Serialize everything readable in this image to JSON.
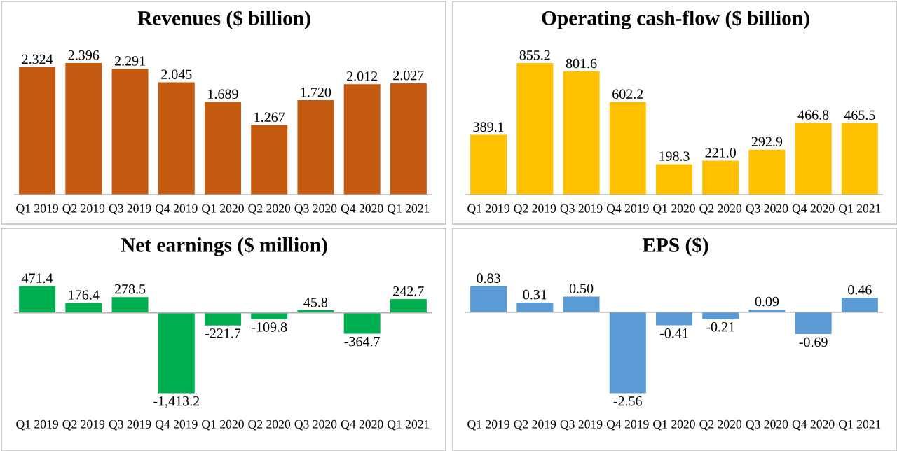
{
  "chart_data": [
    {
      "type": "bar",
      "title": "Revenues ($ billion)",
      "categories": [
        "Q1 2019",
        "Q2 2019",
        "Q3 2019",
        "Q4 2019",
        "Q1 2020",
        "Q2 2020",
        "Q3 2020",
        "Q4 2020",
        "Q1 2021"
      ],
      "values": [
        2.324,
        2.396,
        2.291,
        2.045,
        1.689,
        1.267,
        1.72,
        2.012,
        2.027
      ],
      "value_labels": [
        "2.324",
        "2.396",
        "2.291",
        "2.045",
        "1.689",
        "1.267",
        "1.720",
        "2.012",
        "2.027"
      ],
      "color": "#c55a11",
      "tick_labels": "x"
    },
    {
      "type": "bar",
      "title": "Operating cash-flow ($ billion)",
      "categories": [
        "Q1 2019",
        "Q2 2019",
        "Q3 2019",
        "Q4 2019",
        "Q1 2020",
        "Q2 2020",
        "Q3 2020",
        "Q4 2020",
        "Q1 2021"
      ],
      "values": [
        389.1,
        855.2,
        801.6,
        602.2,
        198.3,
        221.0,
        292.9,
        466.8,
        465.5
      ],
      "value_labels": [
        "389.1",
        "855.2",
        "801.6",
        "602.2",
        "198.3",
        "221.0",
        "292.9",
        "466.8",
        "465.5"
      ],
      "color": "#ffc000",
      "tick_labels": "x"
    },
    {
      "type": "bar",
      "title": "Net earnings ($ million)",
      "categories": [
        "Q1 2019",
        "Q2 2019",
        "Q3 2019",
        "Q4 2019",
        "Q1 2020",
        "Q2 2020",
        "Q3 2020",
        "Q4 2020",
        "Q1 2021"
      ],
      "values": [
        471.4,
        176.4,
        278.5,
        -1413.2,
        -221.7,
        -109.8,
        45.8,
        -364.7,
        242.7
      ],
      "value_labels": [
        "471.4",
        "176.4",
        "278.5",
        "-1,413.2",
        "-221.7",
        "-109.8",
        "45.8",
        "-364.7",
        "242.7"
      ],
      "color": "#00b050",
      "tick_labels": "x"
    },
    {
      "type": "bar",
      "title": "EPS ($)",
      "categories": [
        "Q1 2019",
        "Q2 2019",
        "Q3 2019",
        "Q4 2019",
        "Q1 2020",
        "Q2 2020",
        "Q3 2020",
        "Q4 2020",
        "Q1 2021"
      ],
      "values": [
        0.83,
        0.31,
        0.5,
        -2.56,
        -0.41,
        -0.21,
        0.09,
        -0.69,
        0.46
      ],
      "value_labels": [
        "0.83",
        "0.31",
        "0.50",
        "-2.56",
        "-0.41",
        "-0.21",
        "0.09",
        "-0.69",
        "0.46"
      ],
      "color": "#5b9bd5",
      "tick_labels": "x"
    }
  ]
}
